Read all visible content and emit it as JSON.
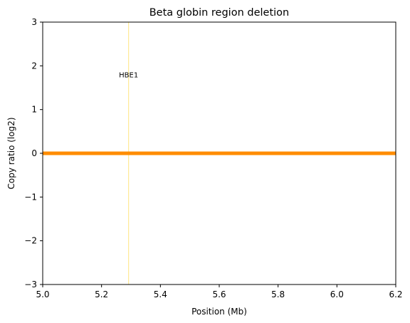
{
  "chart_data": {
    "type": "line",
    "title": "Beta globin region deletion",
    "xlabel": "Position (Mb)",
    "ylabel": "Copy ratio (log2)",
    "xlim": [
      5.0,
      6.2
    ],
    "ylim": [
      -3,
      3
    ],
    "x_ticks": [
      5.0,
      5.2,
      5.4,
      5.6,
      5.8,
      6.0,
      6.2
    ],
    "x_tick_labels": [
      "5.0",
      "5.2",
      "5.4",
      "5.6",
      "5.8",
      "6.0",
      "6.2"
    ],
    "y_ticks": [
      -3,
      -2,
      -1,
      0,
      1,
      2,
      3
    ],
    "y_tick_labels": [
      "−3",
      "−2",
      "−1",
      "0",
      "1",
      "2",
      "3"
    ],
    "grid": false,
    "series": [
      {
        "x": [
          5.0,
          6.2
        ],
        "y": [
          0,
          0
        ],
        "color": "#ff8c00"
      }
    ],
    "vlines": [
      {
        "x": 5.292,
        "color": "#ffe680"
      }
    ],
    "annotations": [
      {
        "text": "HBE1",
        "x": 5.292,
        "y": 1.8
      }
    ]
  }
}
